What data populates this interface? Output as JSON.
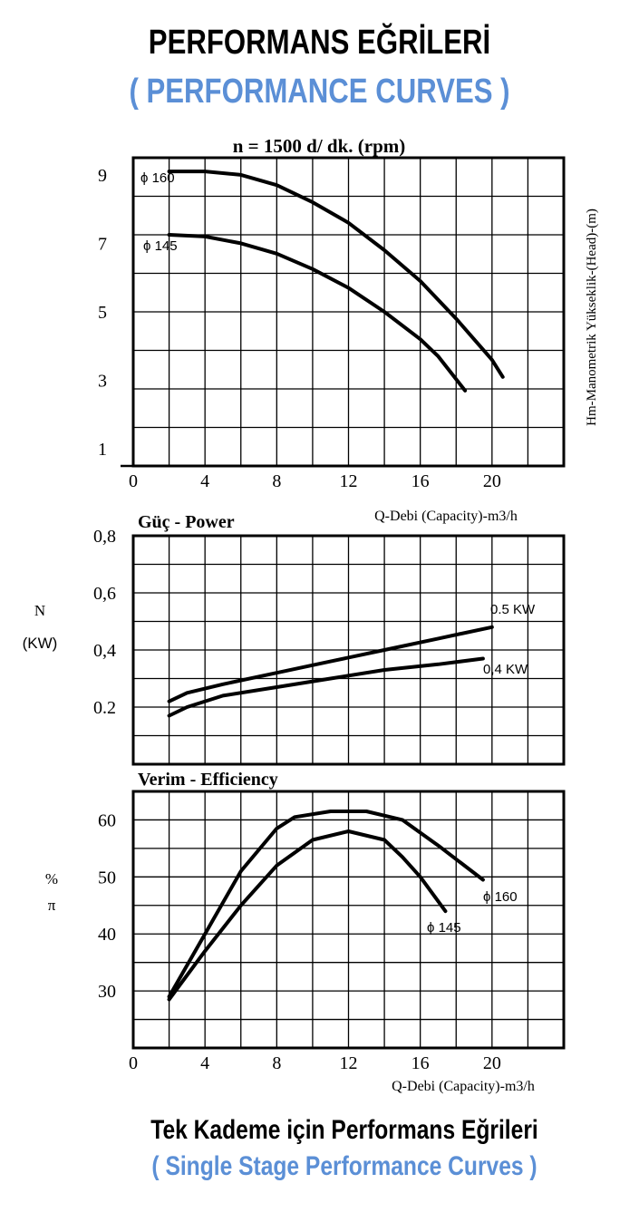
{
  "header": {
    "title": "PERFORMANS EĞRİLERİ",
    "subtitle": "( PERFORMANCE CURVES )"
  },
  "footer": {
    "title": "Tek Kademe için Performans Eğrileri",
    "subtitle": "( Single Stage Performance Curves )"
  },
  "colors": {
    "accent": "#5b8fd6",
    "text": "#000000"
  },
  "chart_data": [
    {
      "type": "line",
      "title": "n = 1500 d/ dk.  (rpm)",
      "xlabel": "Q-Debi (Capacity)-m3/h",
      "ylabel": "Hm-Manometrik Yükseklik-(Head)-(m)",
      "xlim": [
        0,
        24
      ],
      "ylim": [
        0.5,
        9.5
      ],
      "x_ticks": [
        "0",
        "4",
        "8",
        "12",
        "16",
        "20"
      ],
      "y_ticks": [
        {
          "value": 9,
          "label": "9"
        },
        {
          "value": 7,
          "label": "7"
        },
        {
          "value": 5,
          "label": "5"
        },
        {
          "value": 3,
          "label": "3"
        },
        {
          "value": 1,
          "label": "1"
        }
      ],
      "grid": true,
      "series": [
        {
          "name": "ϕ 160",
          "x": [
            2,
            4,
            6,
            8,
            10,
            12,
            14,
            16,
            18,
            20,
            20.6
          ],
          "y": [
            9.1,
            9.1,
            9.0,
            8.7,
            8.2,
            7.6,
            6.8,
            5.9,
            4.8,
            3.6,
            3.1
          ]
        },
        {
          "name": "ϕ 145",
          "x": [
            2,
            4,
            6,
            8,
            10,
            12,
            14,
            16,
            17,
            18.5
          ],
          "y": [
            7.25,
            7.2,
            7.0,
            6.7,
            6.25,
            5.7,
            5.0,
            4.2,
            3.7,
            2.7
          ]
        }
      ]
    },
    {
      "type": "line",
      "title": "Güç - Power",
      "ylabel_lines": [
        "N",
        "(KW)"
      ],
      "xlim": [
        0,
        24
      ],
      "ylim": [
        0,
        0.8
      ],
      "y_ticks": [
        {
          "value": 0.8,
          "label": "0,8"
        },
        {
          "value": 0.6,
          "label": "0,6"
        },
        {
          "value": 0.4,
          "label": "0,4"
        },
        {
          "value": 0.2,
          "label": "0.2"
        }
      ],
      "grid": true,
      "series": [
        {
          "name": "0.5 KW",
          "x": [
            2,
            3,
            5,
            8,
            11,
            14,
            17,
            20
          ],
          "y": [
            0.22,
            0.25,
            0.28,
            0.32,
            0.36,
            0.4,
            0.44,
            0.48
          ]
        },
        {
          "name": "0,4 KW",
          "x": [
            2,
            3,
            5,
            8,
            11,
            14,
            17,
            19.5
          ],
          "y": [
            0.17,
            0.2,
            0.24,
            0.27,
            0.3,
            0.33,
            0.35,
            0.37
          ]
        }
      ]
    },
    {
      "type": "line",
      "title": "Verim - Efficiency",
      "xlabel": "Q-Debi (Capacity)-m3/h",
      "ylabel_lines": [
        "%",
        "π"
      ],
      "xlim": [
        0,
        24
      ],
      "ylim": [
        20,
        65
      ],
      "x_ticks": [
        "0",
        "4",
        "8",
        "12",
        "16",
        "20"
      ],
      "y_ticks": [
        {
          "value": 60,
          "label": "60"
        },
        {
          "value": 50,
          "label": "50"
        },
        {
          "value": 40,
          "label": "40"
        },
        {
          "value": 30,
          "label": "30"
        }
      ],
      "grid": true,
      "series": [
        {
          "name": "ϕ 160",
          "x": [
            2,
            4,
            6,
            8,
            9,
            11,
            13,
            15,
            17,
            19.5
          ],
          "y": [
            29,
            40,
            51,
            58.5,
            60.5,
            61.5,
            61.5,
            60,
            55.5,
            49.5
          ]
        },
        {
          "name": "ϕ 145",
          "x": [
            2,
            4,
            6,
            8,
            10,
            12,
            14,
            15,
            16,
            17.4
          ],
          "y": [
            28.5,
            37,
            45,
            52,
            56.5,
            58,
            56.5,
            53.5,
            50,
            44
          ]
        }
      ]
    }
  ]
}
